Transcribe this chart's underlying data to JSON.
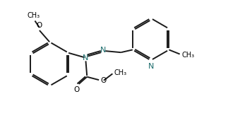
{
  "bg_color": "#ffffff",
  "bond_color": "#1a1a1a",
  "n_color": "#1a6b6b",
  "lw": 1.4,
  "figsize": [
    3.57,
    1.91
  ],
  "dpi": 100,
  "xlim": [
    0,
    10.5
  ],
  "ylim": [
    0,
    5.5
  ]
}
